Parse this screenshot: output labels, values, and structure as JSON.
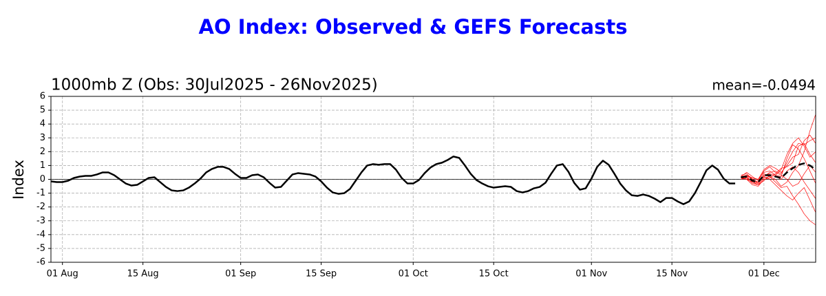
{
  "chart_data": {
    "type": "line",
    "title": "AO Index: Observed & GEFS Forecasts",
    "subtitle": "1000mb Z (Obs: 30Jul2025 - 26Nov2025)",
    "annotation": "mean=-0.0494",
    "y_label": "Index",
    "xlim": [
      "2025-07-30",
      "2025-12-10"
    ],
    "xticks": [
      {
        "value": "2025-08-01",
        "label": "01 Aug"
      },
      {
        "value": "2025-08-15",
        "label": "15 Aug"
      },
      {
        "value": "2025-09-01",
        "label": "01 Sep"
      },
      {
        "value": "2025-09-15",
        "label": "15 Sep"
      },
      {
        "value": "2025-10-01",
        "label": "01 Oct"
      },
      {
        "value": "2025-10-15",
        "label": "15 Oct"
      },
      {
        "value": "2025-11-01",
        "label": "01 Nov"
      },
      {
        "value": "2025-11-15",
        "label": "15 Nov"
      },
      {
        "value": "2025-12-01",
        "label": "01 Dec"
      }
    ],
    "ylim": [
      -6,
      6
    ],
    "yticks": [
      -6,
      -5,
      -4,
      -3,
      -2,
      -1,
      0,
      1,
      2,
      3,
      4,
      5,
      6
    ],
    "grid": true,
    "series": [
      {
        "color": "#000000",
        "style": "solid",
        "width": 2.5,
        "start": "2025-07-30",
        "values": [
          -0.15,
          -0.2,
          -0.2,
          -0.1,
          0.1,
          0.2,
          0.25,
          0.25,
          0.35,
          0.5,
          0.5,
          0.3,
          0,
          -0.3,
          -0.45,
          -0.4,
          -0.15,
          0.1,
          0.15,
          -0.2,
          -0.55,
          -0.8,
          -0.85,
          -0.8,
          -0.6,
          -0.3,
          0.05,
          0.5,
          0.75,
          0.9,
          0.9,
          0.75,
          0.4,
          0.1,
          0.1,
          0.3,
          0.35,
          0.15,
          -0.25,
          -0.6,
          -0.55,
          -0.1,
          0.35,
          0.45,
          0.4,
          0.35,
          0.2,
          -0.15,
          -0.6,
          -0.95,
          -1.05,
          -1.0,
          -0.7,
          -0.1,
          0.5,
          1.0,
          1.1,
          1.05,
          1.1,
          1.1,
          0.7,
          0.1,
          -0.3,
          -0.3,
          -0.05,
          0.45,
          0.85,
          1.1,
          1.2,
          1.4,
          1.65,
          1.55,
          1.0,
          0.4,
          -0.05,
          -0.3,
          -0.5,
          -0.6,
          -0.55,
          -0.5,
          -0.55,
          -0.85,
          -0.95,
          -0.85,
          -0.65,
          -0.55,
          -0.25,
          0.4,
          1.0,
          1.1,
          0.55,
          -0.25,
          -0.75,
          -0.65,
          0.05,
          0.9,
          1.35,
          1.05,
          0.4,
          -0.3,
          -0.8,
          -1.15,
          -1.2,
          -1.1,
          -1.2,
          -1.4,
          -1.65,
          -1.35,
          -1.35,
          -1.6,
          -1.8,
          -1.6,
          -1.0,
          -0.2,
          0.65,
          1.0,
          0.7,
          0.05,
          -0.3,
          -0.3
        ]
      },
      {
        "color": "#ff0000",
        "style": "solid",
        "width": 0.7,
        "start": "2025-11-27",
        "values": [
          0.1,
          0.3,
          0,
          -0.3,
          0.2,
          0.5,
          0.6,
          0.4,
          1.2,
          2.0,
          2.6,
          2.5,
          2.8,
          3.0
        ]
      },
      {
        "color": "#ff0000",
        "style": "solid",
        "width": 0.7,
        "start": "2025-11-27",
        "values": [
          0.2,
          0.1,
          -0.3,
          -0.4,
          0.1,
          0.2,
          0,
          -0.5,
          -0.2,
          0.5,
          1.0,
          2.0,
          3.5,
          4.7
        ]
      },
      {
        "color": "#ff0000",
        "style": "solid",
        "width": 0.7,
        "start": "2025-11-27",
        "values": [
          0.0,
          0.2,
          0.1,
          0,
          0.5,
          0.6,
          0.3,
          0.2,
          1.5,
          2.5,
          2.2,
          1.5,
          0.6,
          -0.3
        ]
      },
      {
        "color": "#ff0000",
        "style": "solid",
        "width": 0.7,
        "start": "2025-11-27",
        "values": [
          0.3,
          0.4,
          0,
          -0.2,
          0.4,
          0.2,
          -0.2,
          -0.6,
          -0.5,
          -1.2,
          -1.8,
          -2.5,
          -3.0,
          -3.3
        ]
      },
      {
        "color": "#ff0000",
        "style": "solid",
        "width": 0.7,
        "start": "2025-11-27",
        "values": [
          0.1,
          0,
          -0.4,
          -0.5,
          0,
          0.1,
          0.4,
          0.8,
          0.9,
          1.2,
          2.4,
          2.6,
          1.8,
          1.2
        ]
      },
      {
        "color": "#ff0000",
        "style": "solid",
        "width": 0.7,
        "start": "2025-11-27",
        "values": [
          0.2,
          0.5,
          0.2,
          -0.1,
          0.6,
          0.9,
          0.5,
          0.3,
          0,
          -0.5,
          -0.3,
          0.4,
          1.0,
          0.5
        ]
      },
      {
        "color": "#ff0000",
        "style": "solid",
        "width": 0.7,
        "start": "2025-11-27",
        "values": [
          0.1,
          0.2,
          -0.2,
          -0.3,
          0.3,
          0.4,
          0.3,
          0.7,
          1.8,
          2.6,
          3.0,
          2.4,
          1.6,
          2.0
        ]
      },
      {
        "color": "#ff0000",
        "style": "solid",
        "width": 0.7,
        "start": "2025-11-27",
        "values": [
          0.0,
          0.1,
          -0.1,
          -0.2,
          0.2,
          0.0,
          -0.4,
          -0.8,
          -1.2,
          -1.5,
          -1.0,
          -0.6,
          -1.5,
          -2.4
        ]
      },
      {
        "color": "#ff0000",
        "style": "solid",
        "width": 0.7,
        "start": "2025-11-27",
        "values": [
          0.2,
          0.3,
          0.1,
          0,
          0.7,
          1.0,
          0.8,
          0.5,
          1.0,
          1.6,
          1.8,
          2.8,
          3.2,
          2.6
        ]
      },
      {
        "color": "#ff0000",
        "style": "solid",
        "width": 0.7,
        "start": "2025-11-27",
        "values": [
          0.1,
          0.0,
          -0.2,
          -0.4,
          -0.1,
          0.3,
          0.2,
          0.0,
          0.6,
          0.9,
          0.5,
          -0.2,
          -0.8,
          -1.4
        ]
      },
      {
        "color": "#000000",
        "style": "dashed",
        "width": 2.5,
        "start": "2025-11-27",
        "values": [
          0.15,
          0.2,
          -0.1,
          -0.2,
          0.3,
          0.3,
          0.2,
          0.1,
          0.5,
          0.8,
          1.05,
          1.15,
          1.0,
          0.7
        ]
      }
    ]
  }
}
